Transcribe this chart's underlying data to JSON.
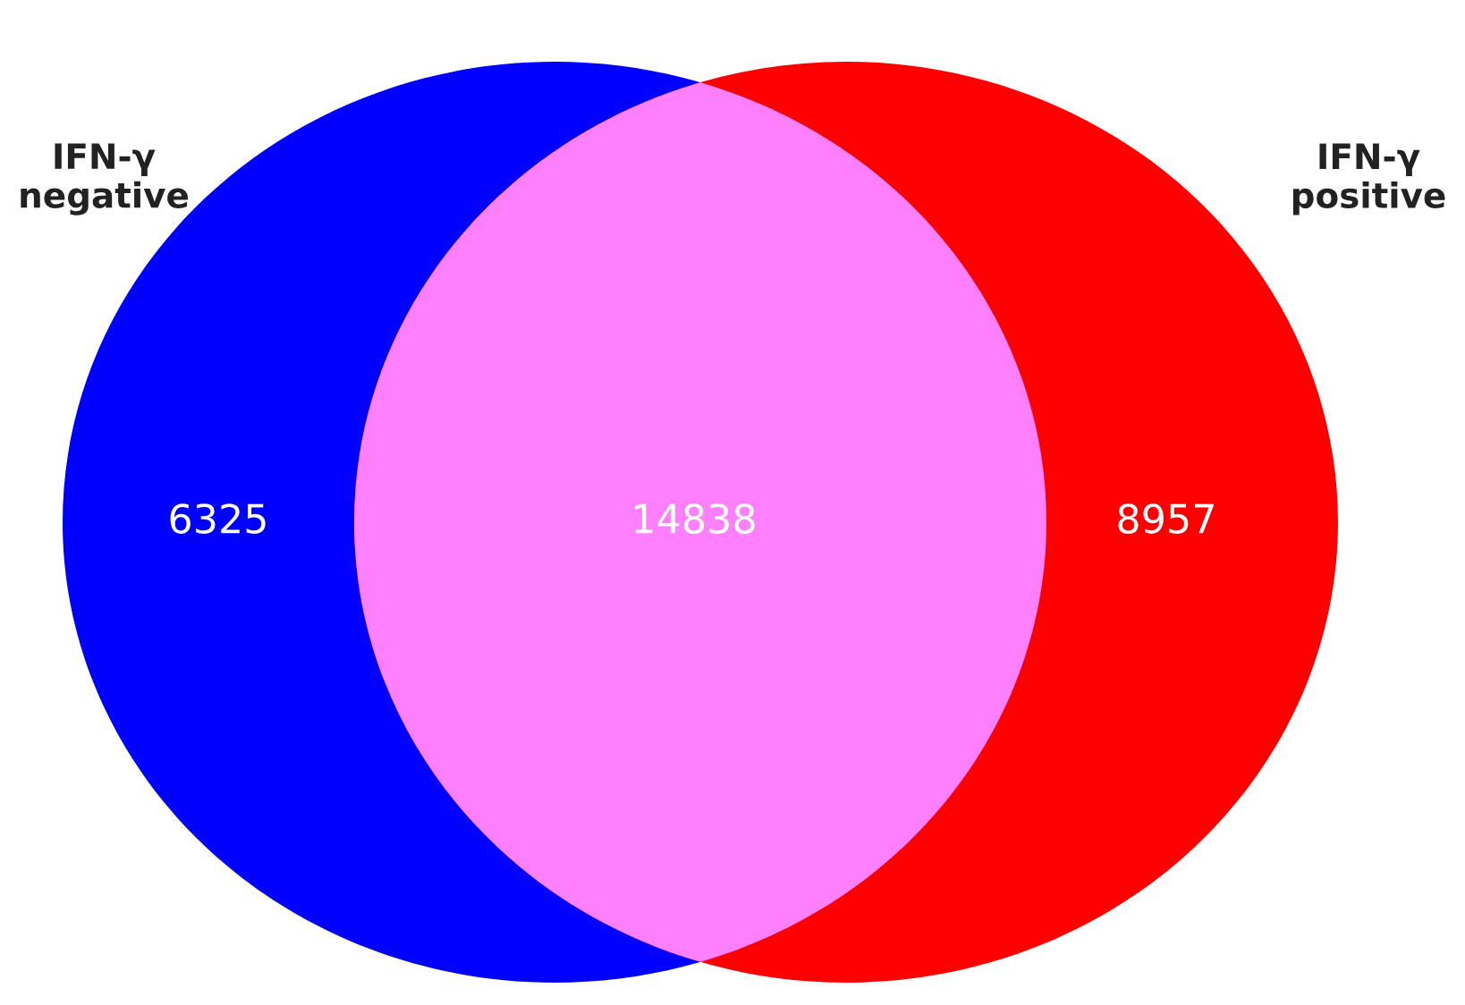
{
  "chart_data": {
    "type": "other",
    "categories": [
      null,
      null,
      null
    ],
    "values": [
      6325,
      14838,
      8957
    ],
    "colors": [
      "#0000ff",
      "#ff80ff",
      "#ff0000"
    ],
    "data_labels": true,
    "annotations": [
      "IFN-γ\nnegative",
      "IFN-γ\npositive"
    ]
  }
}
